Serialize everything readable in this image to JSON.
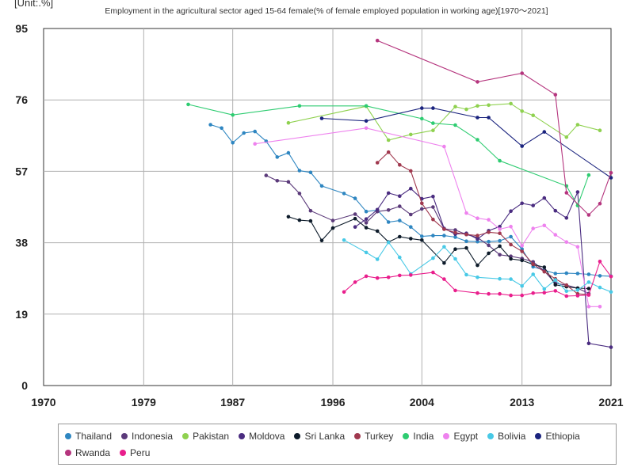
{
  "chart_data": {
    "type": "line",
    "unit_label": "[Unit:.%]",
    "title": "Employment in the agricultural sector aged 15-64 female(% of female employed population in working age)[1970〜2021]",
    "xlim": [
      1970,
      2021
    ],
    "ylim": [
      0,
      95
    ],
    "x_ticks": [
      "1970",
      "1979",
      "1987",
      "1996",
      "2004",
      "2013",
      "2021"
    ],
    "y_ticks": [
      "0",
      "19",
      "38",
      "57",
      "76",
      "95"
    ],
    "grid": true,
    "legend_placement": "bottom",
    "series": [
      {
        "name": "Thailand",
        "color": "#2e86c1",
        "points": [
          [
            1985,
            69.4
          ],
          [
            1986,
            68.5
          ],
          [
            1987,
            64.6
          ],
          [
            1988,
            67.2
          ],
          [
            1989,
            67.6
          ],
          [
            1990,
            65
          ],
          [
            1991,
            60.8
          ],
          [
            1992,
            61.9
          ],
          [
            1993,
            57.2
          ],
          [
            1994,
            56.7
          ],
          [
            1995,
            53.1
          ],
          [
            1997,
            51.1
          ],
          [
            1998,
            49.8
          ],
          [
            1999,
            46.3
          ],
          [
            2000,
            46.7
          ],
          [
            2001,
            43.5
          ],
          [
            2002,
            43.9
          ],
          [
            2003,
            42.2
          ],
          [
            2004,
            39.7
          ],
          [
            2005,
            39.9
          ],
          [
            2006,
            39.9
          ],
          [
            2007,
            39.5
          ],
          [
            2008,
            38.4
          ],
          [
            2009,
            38.3
          ],
          [
            2010,
            38.3
          ],
          [
            2011,
            38.5
          ],
          [
            2012,
            39.6
          ],
          [
            2013,
            36.3
          ],
          [
            2014,
            31.6
          ],
          [
            2015,
            30.7
          ],
          [
            2016,
            29.8
          ],
          [
            2017,
            29.9
          ],
          [
            2018,
            29.8
          ],
          [
            2019,
            29.6
          ],
          [
            2020,
            29.2
          ],
          [
            2021,
            29.1
          ]
        ]
      },
      {
        "name": "Indonesia",
        "color": "#5b3a7a",
        "points": [
          [
            1990,
            55.9
          ],
          [
            1991,
            54.5
          ],
          [
            1992,
            54.2
          ],
          [
            1993,
            51.1
          ],
          [
            1994,
            46.5
          ],
          [
            1996,
            43.9
          ],
          [
            1998,
            45.6
          ],
          [
            1999,
            43.3
          ],
          [
            2000,
            46.3
          ],
          [
            2001,
            46.7
          ],
          [
            2002,
            47.7
          ],
          [
            2003,
            45.5
          ],
          [
            2004,
            47
          ],
          [
            2005,
            47.5
          ],
          [
            2006,
            41.7
          ],
          [
            2007,
            41.4
          ],
          [
            2008,
            40.2
          ],
          [
            2009,
            39.4
          ],
          [
            2010,
            37.3
          ],
          [
            2011,
            34.8
          ],
          [
            2012,
            34.4
          ],
          [
            2013,
            33.8
          ],
          [
            2014,
            32.9
          ],
          [
            2015,
            30.5
          ],
          [
            2016,
            27.2
          ],
          [
            2017,
            26.7
          ],
          [
            2018,
            25.9
          ],
          [
            2019,
            24.5
          ]
        ]
      },
      {
        "name": "Pakistan",
        "color": "#8fd14f",
        "points": [
          [
            1992,
            69.9
          ],
          [
            1999,
            74.3
          ],
          [
            2001,
            65.3
          ],
          [
            2003,
            66.8
          ],
          [
            2005,
            67.9
          ],
          [
            2007,
            74.2
          ],
          [
            2008,
            73.5
          ],
          [
            2009,
            74.4
          ],
          [
            2010,
            74.6
          ],
          [
            2012,
            75
          ],
          [
            2013,
            73
          ],
          [
            2014,
            71.9
          ],
          [
            2017,
            66.1
          ],
          [
            2018,
            69.4
          ],
          [
            2020,
            67.9
          ]
        ]
      },
      {
        "name": "Moldova",
        "color": "#4a2c80",
        "points": [
          [
            1998,
            42.2
          ],
          [
            1999,
            44.3
          ],
          [
            2000,
            46.8
          ],
          [
            2001,
            51.2
          ],
          [
            2002,
            50.4
          ],
          [
            2003,
            52.4
          ],
          [
            2004,
            49.7
          ],
          [
            2005,
            50.3
          ],
          [
            2006,
            41.8
          ],
          [
            2007,
            40.3
          ],
          [
            2008,
            40.5
          ],
          [
            2009,
            39
          ],
          [
            2010,
            41.2
          ],
          [
            2011,
            42.3
          ],
          [
            2012,
            46.4
          ],
          [
            2013,
            48.5
          ],
          [
            2014,
            47.9
          ],
          [
            2015,
            49.9
          ],
          [
            2016,
            46.5
          ],
          [
            2017,
            44.6
          ],
          [
            2018,
            51.5
          ],
          [
            2019,
            11.2
          ],
          [
            2021,
            10.2
          ]
        ]
      },
      {
        "name": "Sri Lanka",
        "color": "#0d1b2a",
        "points": [
          [
            1992,
            44.9
          ],
          [
            1993,
            44
          ],
          [
            1994,
            43.8
          ],
          [
            1995,
            38.6
          ],
          [
            1996,
            41.9
          ],
          [
            1998,
            44.4
          ],
          [
            1999,
            42
          ],
          [
            2000,
            41.1
          ],
          [
            2001,
            38.2
          ],
          [
            2002,
            39.6
          ],
          [
            2003,
            39.1
          ],
          [
            2004,
            38.7
          ],
          [
            2006,
            32.6
          ],
          [
            2007,
            36.3
          ],
          [
            2008,
            36.6
          ],
          [
            2009,
            32
          ],
          [
            2010,
            35.2
          ],
          [
            2011,
            37.1
          ],
          [
            2012,
            33.7
          ],
          [
            2013,
            33.3
          ],
          [
            2014,
            32.2
          ],
          [
            2015,
            31.5
          ],
          [
            2016,
            26.8
          ],
          [
            2017,
            26.3
          ],
          [
            2018,
            25.9
          ],
          [
            2019,
            25.8
          ]
        ]
      },
      {
        "name": "Turkey",
        "color": "#a0384e",
        "points": [
          [
            2000,
            59.3
          ],
          [
            2001,
            62.1
          ],
          [
            2002,
            58.7
          ],
          [
            2003,
            57.1
          ],
          [
            2004,
            48.5
          ],
          [
            2005,
            44.2
          ],
          [
            2006,
            41.6
          ],
          [
            2007,
            40.7
          ],
          [
            2008,
            40.2
          ],
          [
            2009,
            39.9
          ],
          [
            2010,
            40.8
          ],
          [
            2011,
            40.5
          ],
          [
            2012,
            37.5
          ],
          [
            2013,
            35.7
          ],
          [
            2014,
            32.3
          ],
          [
            2015,
            30.3
          ],
          [
            2016,
            28.4
          ],
          [
            2017,
            26.7
          ],
          [
            2018,
            24.4
          ],
          [
            2019,
            24.2
          ]
        ]
      },
      {
        "name": "India",
        "color": "#2ecc71",
        "points": [
          [
            1983,
            74.8
          ],
          [
            1987,
            72
          ],
          [
            1993,
            74.4
          ],
          [
            1999,
            74.4
          ],
          [
            2004,
            71
          ],
          [
            2005,
            69.8
          ],
          [
            2007,
            69.3
          ],
          [
            2009,
            65.4
          ],
          [
            2011,
            59.8
          ],
          [
            2017,
            53.1
          ],
          [
            2018,
            47.9
          ],
          [
            2019,
            56
          ]
        ]
      },
      {
        "name": "Egypt",
        "color": "#ee82ee",
        "points": [
          [
            1989,
            64.3
          ],
          [
            1999,
            68.5
          ],
          [
            2006,
            63.6
          ],
          [
            2008,
            45.9
          ],
          [
            2009,
            44.5
          ],
          [
            2010,
            44.1
          ],
          [
            2011,
            41.6
          ],
          [
            2012,
            42.3
          ],
          [
            2013,
            37.2
          ],
          [
            2014,
            41.8
          ],
          [
            2015,
            42.6
          ],
          [
            2016,
            40.1
          ],
          [
            2017,
            38.2
          ],
          [
            2018,
            36.9
          ],
          [
            2019,
            21
          ],
          [
            2020,
            21
          ]
        ]
      },
      {
        "name": "Bolivia",
        "color": "#48c9e6",
        "points": [
          [
            1997,
            38.7
          ],
          [
            1999,
            35.4
          ],
          [
            2000,
            33.6
          ],
          [
            2001,
            38.1
          ],
          [
            2002,
            34.1
          ],
          [
            2003,
            29.7
          ],
          [
            2005,
            33.9
          ],
          [
            2006,
            36.9
          ],
          [
            2007,
            33.7
          ],
          [
            2008,
            29.5
          ],
          [
            2009,
            28.8
          ],
          [
            2011,
            28.4
          ],
          [
            2012,
            28.3
          ],
          [
            2013,
            26.5
          ],
          [
            2014,
            29.6
          ],
          [
            2015,
            25.7
          ],
          [
            2016,
            28.1
          ],
          [
            2017,
            25.1
          ],
          [
            2018,
            25.4
          ],
          [
            2019,
            27.5
          ],
          [
            2020,
            26.1
          ],
          [
            2021,
            24.9
          ]
        ]
      },
      {
        "name": "Ethiopia",
        "color": "#1a237e",
        "points": [
          [
            1995,
            71.1
          ],
          [
            1999,
            70.4
          ],
          [
            2004,
            73.8
          ],
          [
            2005,
            73.8
          ],
          [
            2009,
            71.3
          ],
          [
            2010,
            71.3
          ],
          [
            2013,
            63.7
          ],
          [
            2015,
            67.5
          ],
          [
            2021,
            55.3
          ]
        ]
      },
      {
        "name": "Rwanda",
        "color": "#b5357e",
        "points": [
          [
            2000,
            91.8
          ],
          [
            2009,
            80.8
          ],
          [
            2013,
            83.1
          ],
          [
            2016,
            77.4
          ],
          [
            2017,
            51.3
          ],
          [
            2019,
            45.4
          ],
          [
            2020,
            48.4
          ],
          [
            2021,
            56.6
          ]
        ]
      },
      {
        "name": "Peru",
        "color": "#e91e8c",
        "points": [
          [
            1997,
            24.9
          ],
          [
            1998,
            27.5
          ],
          [
            1999,
            29.1
          ],
          [
            2000,
            28.6
          ],
          [
            2001,
            28.8
          ],
          [
            2002,
            29.3
          ],
          [
            2003,
            29.4
          ],
          [
            2005,
            30.1
          ],
          [
            2006,
            28.3
          ],
          [
            2007,
            25.3
          ],
          [
            2009,
            24.6
          ],
          [
            2010,
            24.4
          ],
          [
            2011,
            24.4
          ],
          [
            2012,
            24
          ],
          [
            2013,
            24
          ],
          [
            2014,
            24.6
          ],
          [
            2015,
            24.7
          ],
          [
            2016,
            25.2
          ],
          [
            2017,
            23.8
          ],
          [
            2018,
            23.9
          ],
          [
            2019,
            24.1
          ],
          [
            2020,
            33
          ],
          [
            2021,
            29
          ]
        ]
      }
    ]
  }
}
